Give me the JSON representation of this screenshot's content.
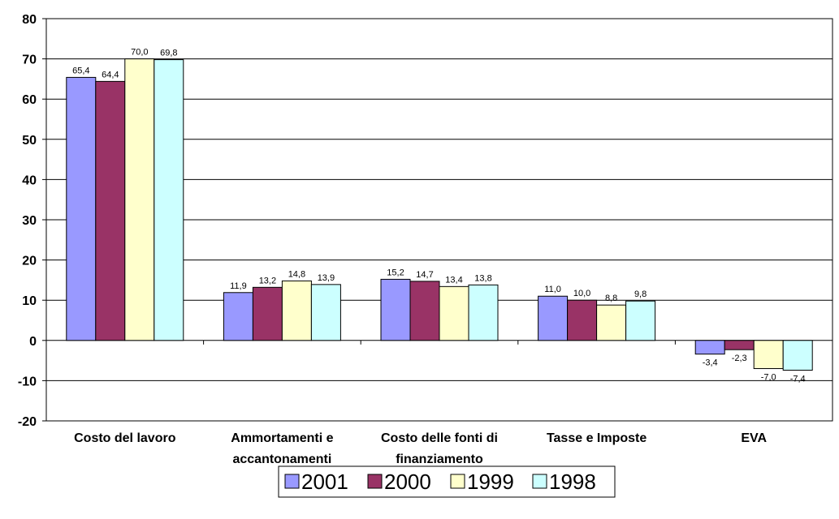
{
  "chart_data": {
    "type": "bar",
    "categories": [
      [
        "Costo del lavoro"
      ],
      [
        "Ammortamenti e",
        "accantonamenti"
      ],
      [
        "Costo delle fonti di",
        "finanziamento"
      ],
      [
        "Tasse e Imposte"
      ],
      [
        "EVA"
      ]
    ],
    "series": [
      {
        "name": "2001",
        "color": "#9999ff",
        "values": [
          65.4,
          11.9,
          15.2,
          11.0,
          -3.4
        ],
        "labels": [
          "65,4",
          "11,9",
          "15,2",
          "11,0",
          "-3,4"
        ]
      },
      {
        "name": "2000",
        "color": "#993366",
        "values": [
          64.4,
          13.2,
          14.7,
          10.0,
          -2.3
        ],
        "labels": [
          "64,4",
          "13,2",
          "14,7",
          "10,0",
          "-2,3"
        ]
      },
      {
        "name": "1999",
        "color": "#ffffcc",
        "values": [
          70.0,
          14.8,
          13.4,
          8.8,
          -7.0
        ],
        "labels": [
          "70,0",
          "14,8",
          "13,4",
          "8,8",
          "-7,0"
        ]
      },
      {
        "name": "1998",
        "color": "#ccffff",
        "values": [
          69.8,
          13.9,
          13.8,
          9.8,
          -7.4
        ],
        "labels": [
          "69,8",
          "13,9",
          "13,8",
          "9,8",
          "-7,4"
        ]
      }
    ],
    "ylim": [
      -20,
      80
    ],
    "yticks": [
      80,
      70,
      60,
      50,
      40,
      30,
      20,
      10,
      0,
      -10,
      -20
    ],
    "grid": true,
    "legend_position": "bottom",
    "title": "",
    "xlabel": "",
    "ylabel": ""
  }
}
